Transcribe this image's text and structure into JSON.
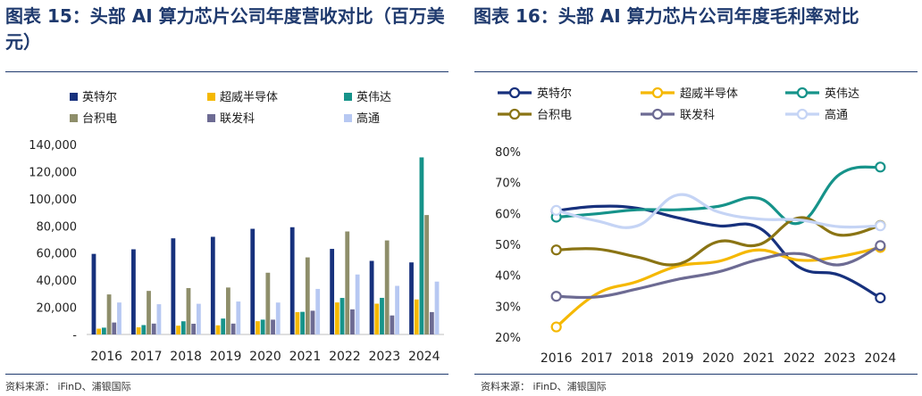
{
  "figures": [
    {
      "caption": "图表 15：头部 AI 算力芯片公司年度营收对比（百万美元）",
      "source": "资料来源：  iFinD、浦银国际"
    },
    {
      "caption": "图表 16：头部 AI 算力芯片公司年度毛利率对比",
      "source": "资料来源：  iFinD、浦银国际"
    }
  ],
  "chart_data": [
    {
      "type": "bar",
      "title": "",
      "categories": [
        "2016",
        "2017",
        "2018",
        "2019",
        "2020",
        "2021",
        "2022",
        "2023",
        "2024"
      ],
      "ylim": [
        0,
        140000
      ],
      "yticks": [
        "-",
        "20,000",
        "40,000",
        "60,000",
        "80,000",
        "100,000",
        "120,000",
        "140,000"
      ],
      "grid": false,
      "legend_position": "top",
      "series": [
        {
          "name": "英特尔",
          "color": "#17317d",
          "values": [
            59387,
            62761,
            70848,
            71965,
            77867,
            79024,
            63054,
            54228,
            53101
          ]
        },
        {
          "name": "超威半导体",
          "color": "#f5b800",
          "values": [
            4272,
            5253,
            6475,
            6731,
            9763,
            16434,
            23601,
            22680,
            25785
          ]
        },
        {
          "name": "英伟达",
          "color": "#16938a",
          "values": [
            5010,
            6910,
            9714,
            11716,
            10918,
            16675,
            26914,
            26974,
            130497
          ]
        },
        {
          "name": "台积电",
          "color": "#8e8e6a",
          "values": [
            29500,
            32100,
            34200,
            34600,
            45500,
            56800,
            75900,
            69300,
            88000
          ]
        },
        {
          "name": "联发科",
          "color": "#6d6b93",
          "values": [
            8800,
            8000,
            7900,
            8000,
            10900,
            17500,
            18500,
            14000,
            16500
          ]
        },
        {
          "name": "高通",
          "color": "#b7c8f2",
          "values": [
            23554,
            22291,
            22611,
            24273,
            23531,
            33566,
            44200,
            35820,
            38962
          ]
        }
      ]
    },
    {
      "type": "line",
      "title": "",
      "categories": [
        "2016",
        "2017",
        "2018",
        "2019",
        "2020",
        "2021",
        "2022",
        "2023",
        "2024"
      ],
      "ylim": [
        20,
        80
      ],
      "yticks": [
        "20%",
        "30%",
        "40%",
        "50%",
        "60%",
        "70%",
        "80%"
      ],
      "grid": false,
      "legend_position": "top",
      "series": [
        {
          "name": "英特尔",
          "color": "#17317d",
          "values": [
            60.9,
            62.3,
            61.7,
            58.6,
            56.0,
            55.4,
            42.6,
            40.0,
            32.7
          ]
        },
        {
          "name": "超威半导体",
          "color": "#f5b800",
          "values": [
            23.3,
            34.0,
            38.0,
            43.0,
            44.5,
            48.2,
            44.9,
            46.1,
            49.0
          ]
        },
        {
          "name": "英伟达",
          "color": "#16938a",
          "values": [
            58.8,
            59.9,
            61.2,
            61.2,
            62.3,
            64.9,
            56.9,
            72.7,
            75.0
          ]
        },
        {
          "name": "台积电",
          "color": "#8a7414",
          "values": [
            48.2,
            48.5,
            45.9,
            43.6,
            50.9,
            49.9,
            58.6,
            53.0,
            56.1
          ]
        },
        {
          "name": "联发科",
          "color": "#6d6b93",
          "values": [
            33.2,
            33.0,
            35.6,
            38.7,
            41.1,
            45.1,
            47.0,
            43.4,
            49.6
          ]
        },
        {
          "name": "高通",
          "color": "#c5d4f5",
          "values": [
            61.0,
            57.6,
            56.0,
            66.0,
            60.5,
            58.2,
            57.9,
            55.7,
            56.0
          ]
        }
      ]
    }
  ]
}
